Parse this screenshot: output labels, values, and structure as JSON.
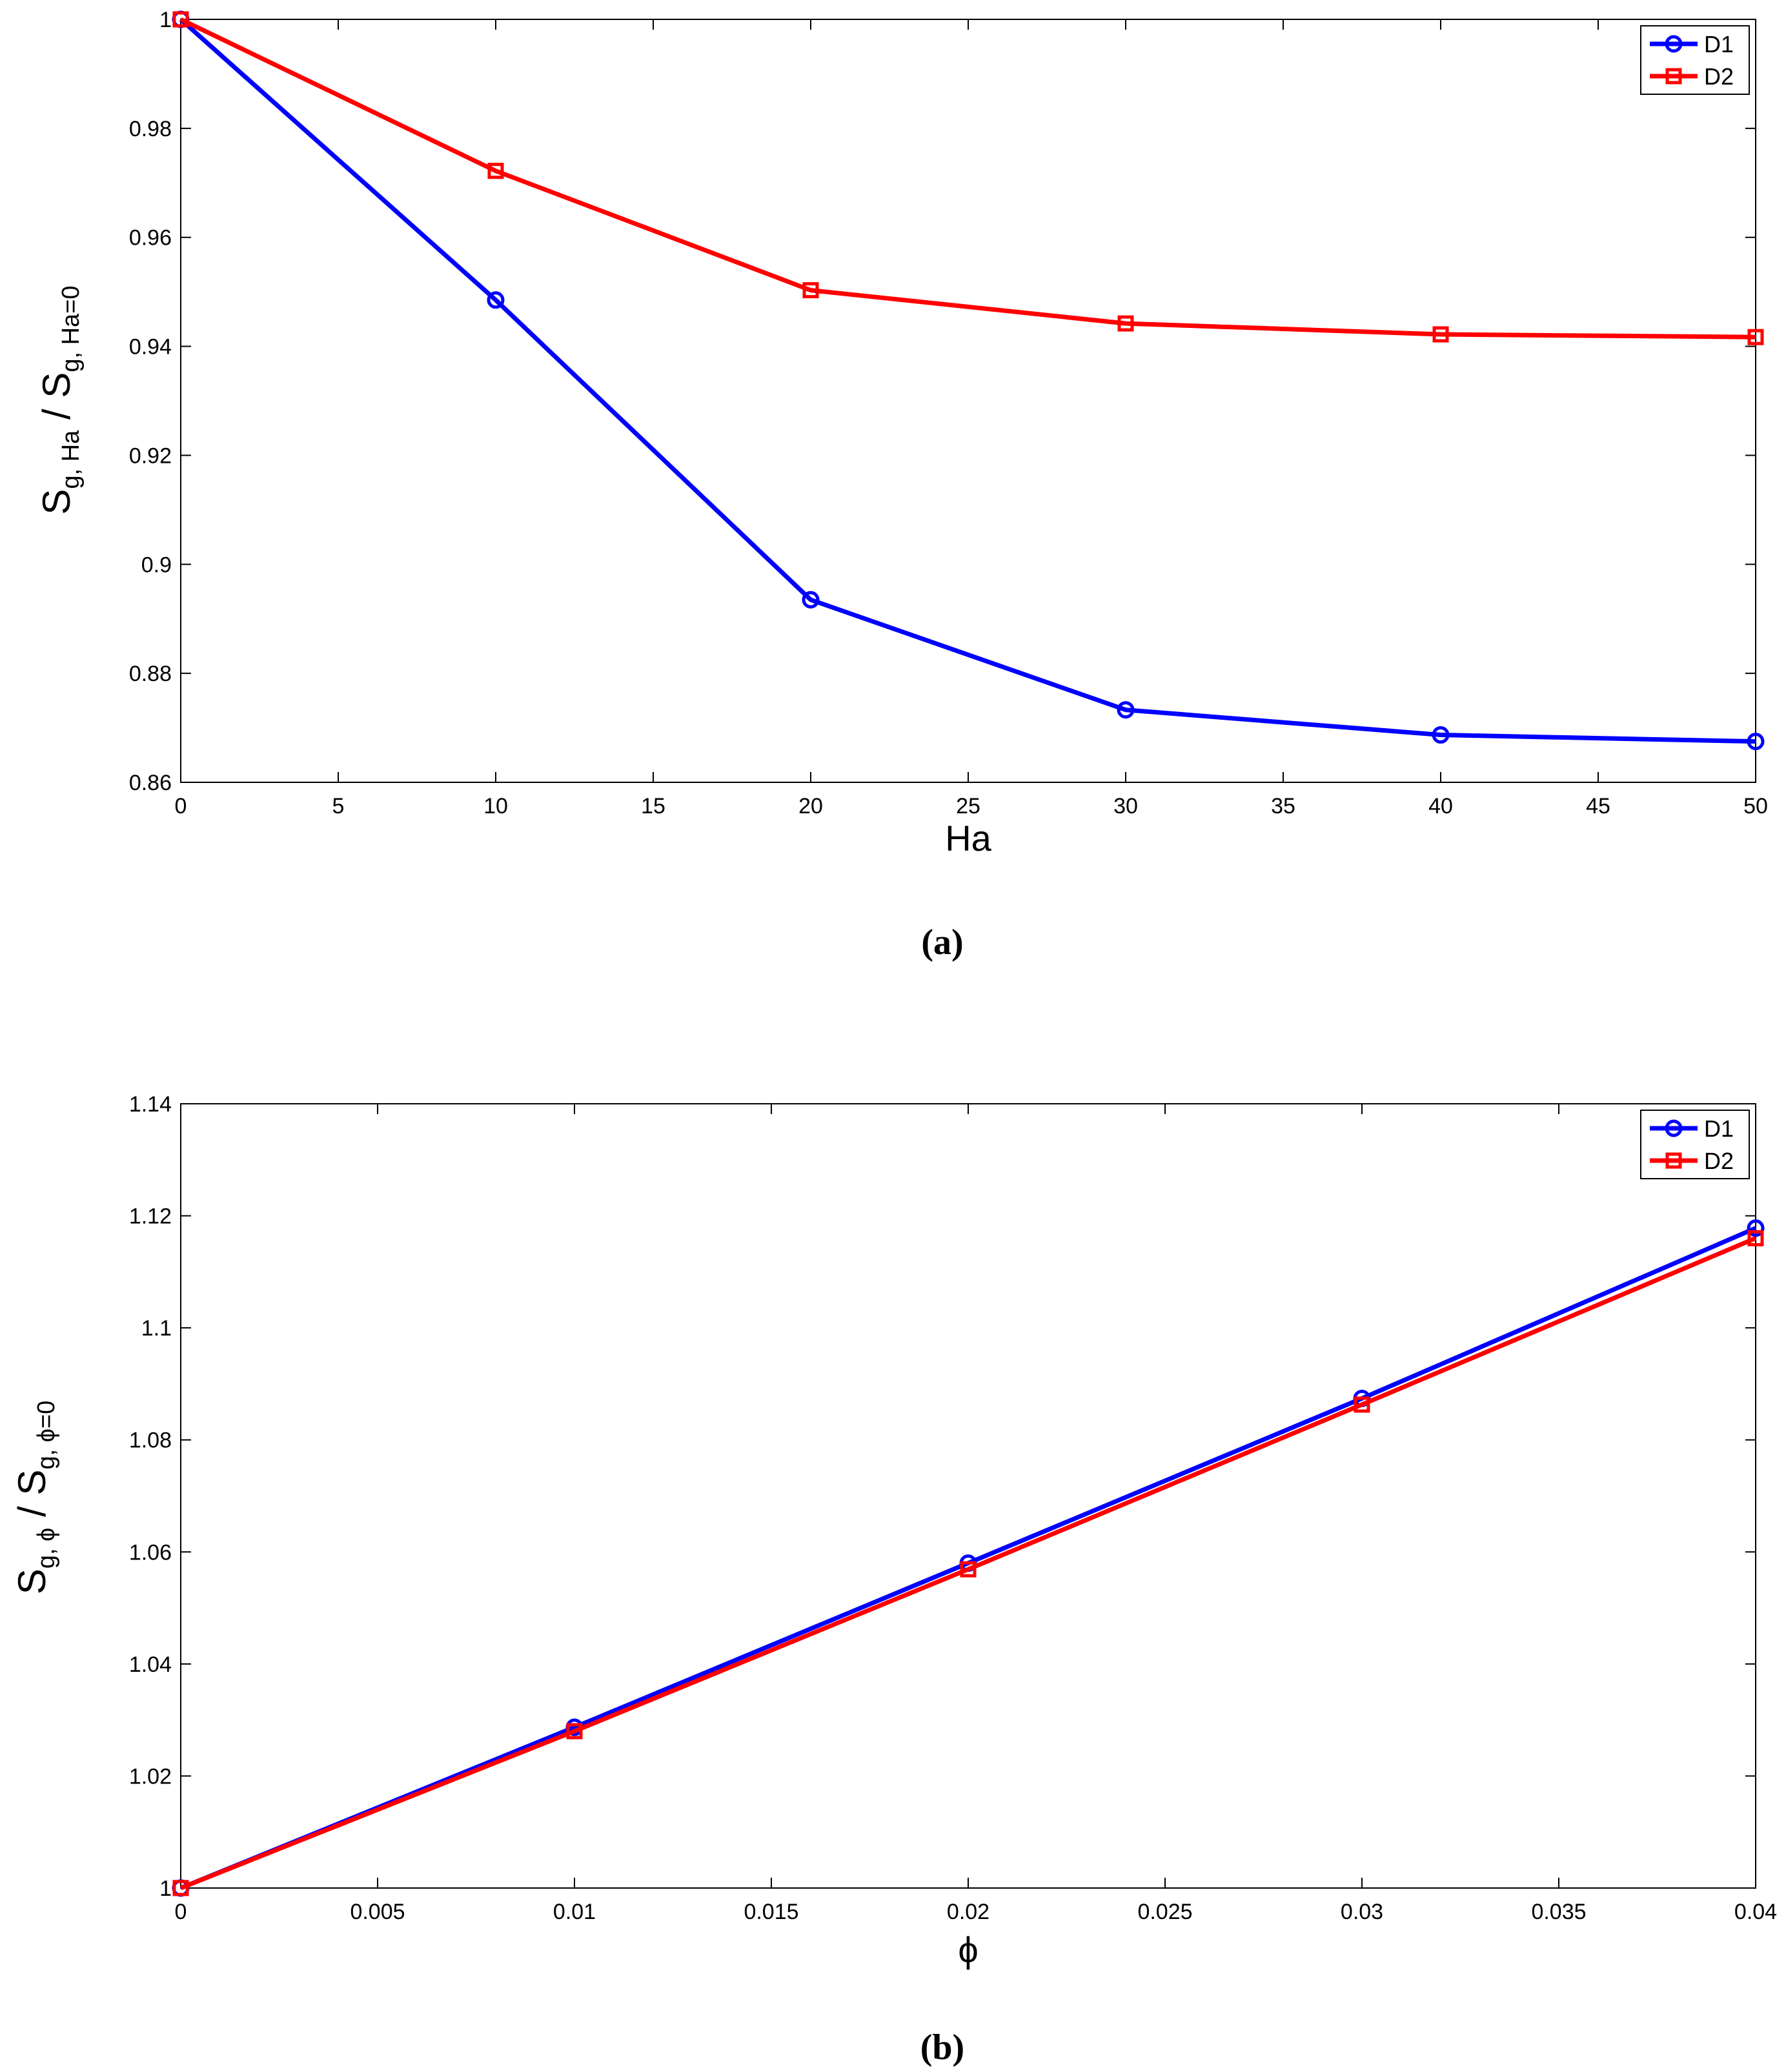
{
  "chart_data": [
    {
      "type": "line",
      "caption": "(a)",
      "xlabel": "Ha",
      "ylabel": {
        "main": "S",
        "sub1": "g, Ha",
        "mid": " / S",
        "sub2": "g, Ha=0"
      },
      "x": [
        0,
        10,
        20,
        30,
        40,
        50
      ],
      "xlim": [
        0,
        50
      ],
      "ylim": [
        0.86,
        1
      ],
      "xticks": [
        "0",
        "5",
        "10",
        "15",
        "20",
        "25",
        "30",
        "35",
        "40",
        "45",
        "50"
      ],
      "yticks": [
        "0.86",
        "0.88",
        "0.9",
        "0.92",
        "0.94",
        "0.96",
        "0.98",
        "1"
      ],
      "grid": false,
      "legend": "top-right",
      "series": [
        {
          "name": "D1",
          "color": "#0000ff",
          "marker": "circle",
          "values": [
            1.0,
            0.9485,
            0.8935,
            0.8733,
            0.8687,
            0.8675
          ]
        },
        {
          "name": "D2",
          "color": "#ff0000",
          "marker": "square",
          "values": [
            1.0,
            0.9722,
            0.9503,
            0.9442,
            0.9422,
            0.9417
          ]
        }
      ]
    },
    {
      "type": "line",
      "caption": "(b)",
      "xlabel": "ϕ",
      "ylabel": {
        "main": "S",
        "sub1": "g, ϕ",
        "mid": " / S",
        "sub2": "g, ϕ=0"
      },
      "x": [
        0,
        0.01,
        0.02,
        0.03,
        0.04
      ],
      "xlim": [
        0,
        0.04
      ],
      "ylim": [
        1,
        1.14
      ],
      "xticks": [
        "0",
        "0.005",
        "0.01",
        "0.015",
        "0.02",
        "0.025",
        "0.03",
        "0.035",
        "0.04"
      ],
      "yticks": [
        "1",
        "1.02",
        "1.04",
        "1.06",
        "1.08",
        "1.1",
        "1.12",
        "1.14"
      ],
      "grid": false,
      "legend": "top-right",
      "series": [
        {
          "name": "D1",
          "color": "#0000ff",
          "marker": "circle",
          "values": [
            1.0,
            1.0287,
            1.058,
            1.0874,
            1.1178
          ]
        },
        {
          "name": "D2",
          "color": "#ff0000",
          "marker": "square",
          "values": [
            1.0,
            1.028,
            1.0569,
            1.0863,
            1.116
          ]
        }
      ]
    }
  ]
}
